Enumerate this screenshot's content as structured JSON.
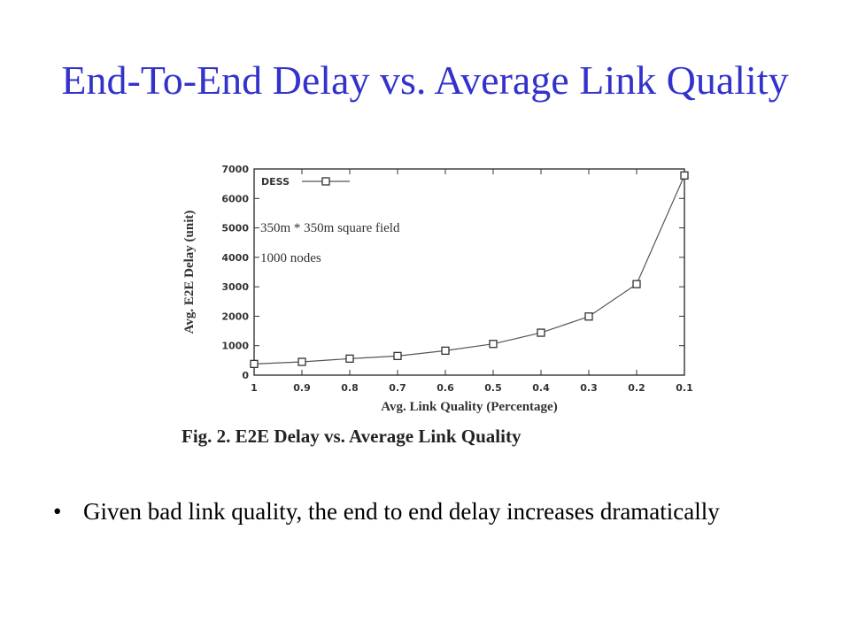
{
  "slide": {
    "title": "End-To-End Delay vs. Average Link Quality",
    "figure_caption": "Fig. 2. E2E Delay vs. Average Link Quality",
    "bullet_symbol": "•",
    "bullet": "Given bad link quality, the end to end delay increases dramatically"
  },
  "chart_data": {
    "type": "line",
    "xlabel": "Avg. Link Quality (Percentage)",
    "ylabel": "Avg. E2E Delay (unit)",
    "x": [
      1,
      0.9,
      0.8,
      0.7,
      0.6,
      0.5,
      0.4,
      0.3,
      0.2,
      0.1
    ],
    "x_tick_labels": [
      "1",
      "0.9",
      "0.8",
      "0.7",
      "0.6",
      "0.5",
      "0.4",
      "0.3",
      "0.2",
      "0.1"
    ],
    "y_ticks": [
      0,
      1000,
      2000,
      3000,
      4000,
      5000,
      6000,
      7000
    ],
    "ylim": [
      0,
      7000
    ],
    "x_reversed": true,
    "series": [
      {
        "name": "DESS",
        "values": [
          380,
          450,
          560,
          650,
          830,
          1060,
          1440,
          1990,
          3090,
          6780
        ],
        "marker": "open-square",
        "color": "#555555"
      }
    ],
    "annotations": [
      "350m * 350m square field",
      "1000 nodes"
    ],
    "legend_position": "top-left",
    "grid": false
  }
}
